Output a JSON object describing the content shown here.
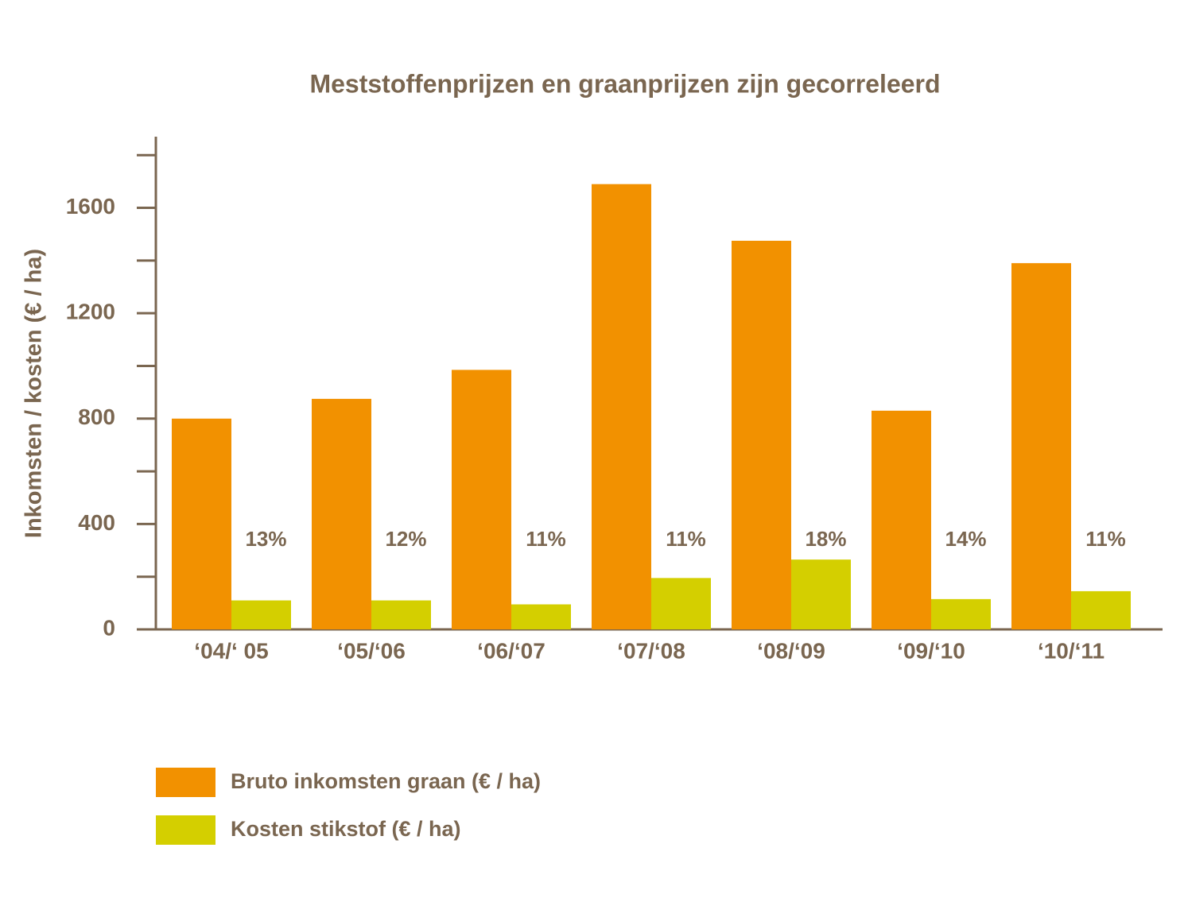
{
  "chart_data": {
    "type": "bar",
    "title": "Meststoffenprijzen en graanprijzen zijn gecorreleerd",
    "y_label": "Inkomsten / kosten (€ / ha)",
    "categories": [
      "‘04/‘ 05",
      "‘05/‘06",
      "‘06/‘07",
      "‘07/‘08",
      "‘08/‘09",
      "‘09/‘10",
      "‘10/‘11"
    ],
    "series": [
      {
        "name": "Bruto inkomsten graan (€ / ha)",
        "color": "#f29100",
        "values": [
          800,
          875,
          985,
          1690,
          1475,
          830,
          1390
        ]
      },
      {
        "name": "Kosten stikstof (€ / ha)",
        "color": "#d4cf00",
        "values": [
          110,
          110,
          95,
          195,
          265,
          115,
          145
        ]
      }
    ],
    "annotations": [
      "13%",
      "12%",
      "11%",
      "11%",
      "18%",
      "14%",
      "11%"
    ],
    "ylim": [
      0,
      1870
    ],
    "yticks": [
      0,
      400,
      800,
      1200,
      1600
    ],
    "yminorticks": [
      200,
      600,
      1000,
      1400,
      1800
    ],
    "legend": "bottom"
  }
}
